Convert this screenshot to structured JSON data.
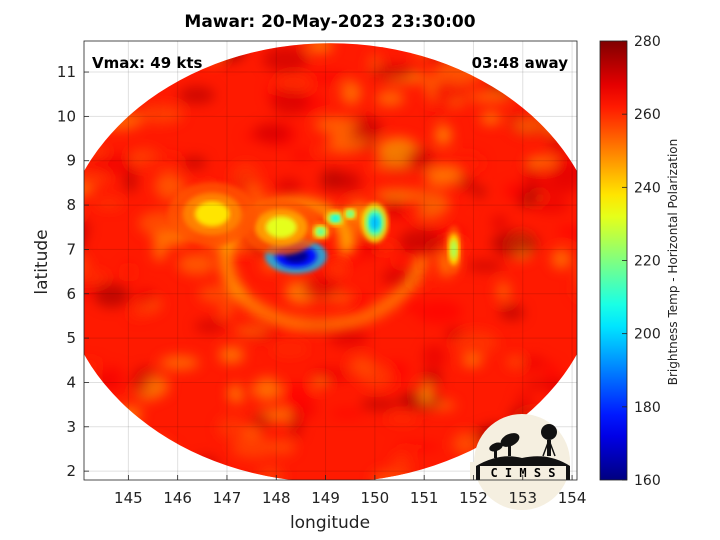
{
  "chart_data": {
    "type": "heatmap",
    "title": "Mawar: 20-May-2023 23:30:00",
    "xlabel": "longitude",
    "ylabel": "latitude",
    "xlim": [
      144.1,
      154.1
    ],
    "ylim": [
      1.8,
      11.7
    ],
    "xticks": [
      145,
      146,
      147,
      148,
      149,
      150,
      151,
      152,
      153,
      154
    ],
    "yticks": [
      2,
      3,
      4,
      5,
      6,
      7,
      8,
      9,
      10,
      11
    ],
    "grid": true,
    "colorbar": {
      "label": "Brightness Temp - Horizontal Polarization",
      "range": [
        160,
        280
      ],
      "ticks": [
        160,
        180,
        200,
        220,
        240,
        260,
        280
      ]
    },
    "annotations": {
      "vmax": "Vmax: 49 kts",
      "time_away": "03:48 away"
    },
    "swath": {
      "center_lon": 149.1,
      "center_lat": 6.7,
      "radius_lon": 5.5,
      "radius_lat": 4.95
    },
    "cold_cells": [
      {
        "lon": 148.4,
        "lat": 6.85,
        "temp": 162,
        "spread_lon": 0.35,
        "spread_lat": 0.22
      },
      {
        "lon": 148.1,
        "lat": 7.5,
        "temp": 232,
        "spread_lon": 0.45,
        "spread_lat": 0.35
      },
      {
        "lon": 149.2,
        "lat": 7.7,
        "temp": 205,
        "spread_lon": 0.12,
        "spread_lat": 0.1
      },
      {
        "lon": 148.9,
        "lat": 7.4,
        "temp": 215,
        "spread_lon": 0.12,
        "spread_lat": 0.12
      },
      {
        "lon": 149.5,
        "lat": 7.8,
        "temp": 215,
        "spread_lon": 0.1,
        "spread_lat": 0.1
      },
      {
        "lon": 150.0,
        "lat": 7.6,
        "temp": 198,
        "spread_lon": 0.15,
        "spread_lat": 0.25
      },
      {
        "lon": 151.6,
        "lat": 7.0,
        "temp": 225,
        "spread_lon": 0.1,
        "spread_lat": 0.3
      },
      {
        "lon": 146.7,
        "lat": 7.8,
        "temp": 238,
        "spread_lon": 0.5,
        "spread_lat": 0.4
      }
    ],
    "logo_text": "C I M S S"
  }
}
